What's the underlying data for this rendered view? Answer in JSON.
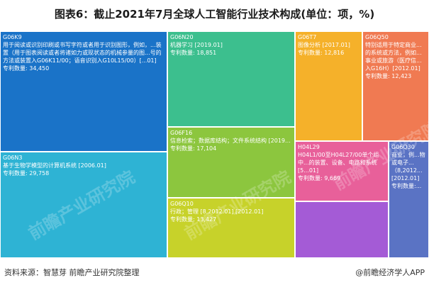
{
  "title": "图表6：截止2021年7月全球人工智能行业技术构成(单位：项，%)",
  "source": "资料来源：智慧芽 前瞻产业研究院整理",
  "brand": "@前瞻经济学人APP",
  "watermark": "前瞻产业研究院",
  "chart_data": {
    "type": "treemap",
    "title": "图表6：截止2021年7月全球人工智能行业技术构成(单位：项，%)",
    "value_label": "专利数量",
    "nodes": [
      {
        "id": "g06k9",
        "code": "G06K9",
        "desc": "用于阅读或识别印刷或书写字符或者用于识别图形，例如，...装置（用于图表阅读或者将诸如力或现状态的机械参量的图...号的方法或装置入G06K11/00；语音识别入G10L15/00）[...01]",
        "value": 34450,
        "value_text": "专利数量: 34,450",
        "color": "#1a73c8"
      },
      {
        "id": "g06n3",
        "code": "G06N3",
        "desc": "基于生物学模型的计算机系统 [2006.01]",
        "value": 29758,
        "value_text": "专利数量: 29,758",
        "color": "#2eb3d4"
      },
      {
        "id": "g06n20",
        "code": "G06N20",
        "desc": "机器学习 [2019.01]",
        "value": 18851,
        "value_text": "专利数量: 18,851",
        "color": "#3cbf8e"
      },
      {
        "id": "g06f16",
        "code": "G06F16",
        "desc": "信息检索；数据库结构；文件系统结构 [2019...",
        "value": 17104,
        "value_text": "专利数量: 17,104",
        "color": "#8cc63e"
      },
      {
        "id": "g06q10",
        "code": "G06Q10",
        "desc": "行政；管理 [8,2012.01] [2012.01]",
        "value": 13427,
        "value_text": "专利数量: 13,427",
        "color": "#c7d22a"
      },
      {
        "id": "g06t7",
        "code": "G06T7",
        "desc": "图像分析 [2017.01]",
        "value": 12816,
        "value_text": "专利数量: 12,816",
        "color": "#f5b12a"
      },
      {
        "id": "g06q50",
        "code": "G06Q50",
        "desc": "特别适用于特定商业...的系统或方法，例如...事业或旅游（医疗信...入G16H）[2012.01]",
        "value": 12423,
        "value_text": "专利数量: 12,423",
        "color": "#f07a52"
      },
      {
        "id": "h04l29",
        "code": "H04L29",
        "desc": "H04L1/00至H04L27/00单个组中...的装置、设备、电路和系统 [5...01]",
        "value": 9669,
        "value_text": "专利数量: 9,669",
        "color": "#e8609a"
      },
      {
        "id": "g06q30",
        "code": "G06Q30",
        "desc": "商业，例...物或电子...（8,2012...[2012.01]",
        "value": null,
        "value_text": "专利数量:...",
        "color": "#5a73c4"
      },
      {
        "id": "untitled-purple",
        "code": "",
        "desc": "",
        "value": null,
        "value_text": "",
        "color": "#a45bd6"
      }
    ]
  }
}
